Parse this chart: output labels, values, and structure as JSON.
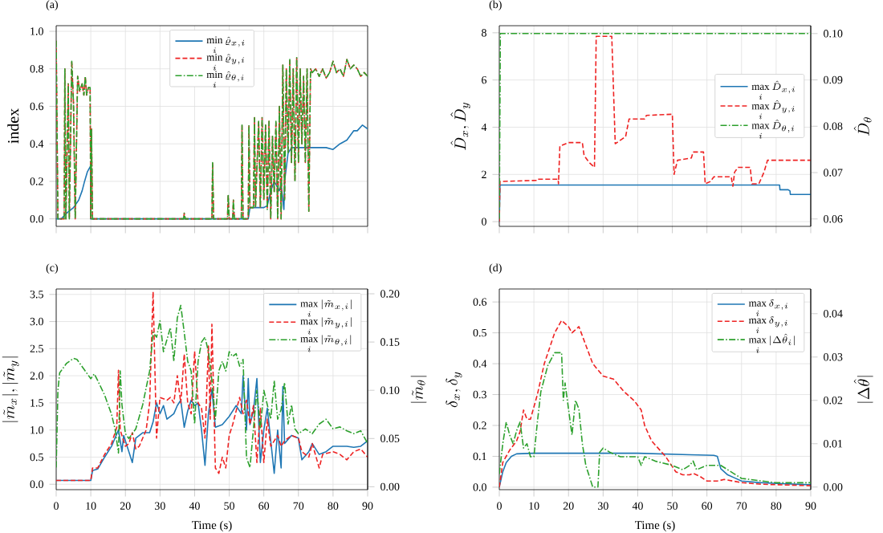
{
  "chart_data": [
    {
      "type": "line",
      "title": "(a)",
      "ylabel": "index",
      "xlim": [
        0,
        90
      ],
      "ylim": [
        -0.04,
        1.03
      ],
      "xticks": [
        0,
        10,
        20,
        30,
        40,
        50,
        60,
        70,
        80,
        90
      ],
      "yticks": [
        {
          "value": 0,
          "label": "0.0"
        },
        {
          "value": 0.2,
          "label": "0.2"
        },
        {
          "value": 0.4,
          "label": "0.4"
        },
        {
          "value": 0.6,
          "label": "0.6"
        },
        {
          "value": 0.8,
          "label": "0.8"
        },
        {
          "value": 1,
          "label": "1.0"
        }
      ],
      "tick_labels": "y",
      "grid": true,
      "legend": "top",
      "series": [
        {
          "name": "\\min\\limits_i \\hat{\\varrho}_{x,i}",
          "color": "#1f77b4",
          "line_style": "solid",
          "x": [
            0,
            1.5,
            3,
            5,
            6.5,
            7.5,
            8.2,
            9,
            9.9,
            10,
            55.5,
            56,
            60,
            61,
            62,
            63,
            64.5,
            65,
            65.8,
            66,
            67,
            68,
            72,
            78,
            80,
            82,
            84,
            86,
            87,
            88.5,
            90
          ],
          "values": [
            0,
            0,
            0.03,
            0.06,
            0.1,
            0.15,
            0.2,
            0.25,
            0.28,
            0,
            0,
            0.06,
            0.06,
            0.07,
            0.15,
            0.2,
            0.15,
            0.18,
            0.05,
            0.2,
            0.35,
            0.38,
            0.38,
            0.38,
            0.37,
            0.4,
            0.42,
            0.47,
            0.47,
            0.5,
            0.48
          ]
        },
        {
          "name": "\\min\\limits_i \\hat{\\varrho}_{y,i}",
          "color": "#ee2222",
          "line_style": "dashed",
          "x": [
            0,
            0.5,
            2.3,
            2.5,
            2.8,
            3.5,
            3.8,
            4.5,
            5,
            5.5,
            6.2,
            6.8,
            7.5,
            8,
            8.4,
            8.8,
            9.3,
            9.8,
            10,
            10.2,
            10.5,
            36.8,
            37,
            37.3,
            45,
            45.2,
            45.5,
            49.5,
            49.7,
            50,
            51,
            51.2,
            51.5,
            53.5,
            53.7,
            54,
            55.5,
            55.7,
            56,
            57,
            57.3,
            57.6,
            58.5,
            59,
            59.5,
            60,
            60.5,
            61,
            61.5,
            62,
            62.5,
            63,
            63.5,
            64,
            64.5,
            65,
            65.5,
            66,
            66.5,
            67,
            67.5,
            68,
            68.5,
            69,
            69.5,
            70,
            70.5,
            71,
            71.5,
            72,
            72.5,
            73,
            73.5,
            74,
            75,
            76,
            77,
            78,
            79,
            80,
            81,
            82,
            83,
            84,
            85,
            86,
            87,
            88,
            89,
            90
          ],
          "values": [
            0.95,
            0,
            0,
            0.8,
            0,
            0.72,
            0,
            0.84,
            0.62,
            0,
            0.76,
            0.68,
            0.72,
            0.66,
            0.76,
            0.66,
            0.7,
            0.7,
            0,
            0.48,
            0,
            0,
            0.03,
            0,
            0,
            0.3,
            0,
            0,
            0.13,
            0,
            0,
            0.1,
            0,
            0,
            0.5,
            0,
            0,
            0.5,
            0.06,
            0.06,
            0.54,
            0.06,
            0.52,
            0.06,
            0.54,
            0.1,
            0.5,
            0.05,
            0.52,
            0,
            0.44,
            0.14,
            0.52,
            0,
            0.6,
            0,
            0.82,
            0.1,
            0.8,
            0.35,
            0.85,
            0.3,
            0.8,
            0.2,
            0.86,
            0.3,
            0.8,
            0.4,
            0.76,
            0.3,
            0.8,
            0.04,
            0.8,
            0.78,
            0.8,
            0.76,
            0.8,
            0.75,
            0.78,
            0.84,
            0.78,
            0.8,
            0.76,
            0.85,
            0.8,
            0.82,
            0.8,
            0.76,
            0.78,
            0.76
          ]
        },
        {
          "name": "\\min\\limits_i \\hat{\\varrho}_{\\theta,i}",
          "color": "#2ca02c",
          "line_style": "dashdot",
          "x": [
            0,
            0.5,
            2.3,
            2.5,
            2.8,
            3.5,
            3.8,
            4.5,
            5,
            5.5,
            6.2,
            6.8,
            7.5,
            8,
            8.4,
            8.8,
            9.3,
            9.8,
            10,
            10.2,
            10.5,
            36.8,
            37,
            37.3,
            45,
            45.2,
            45.5,
            49.5,
            49.7,
            50,
            51,
            51.2,
            51.5,
            53.5,
            53.7,
            54,
            55.5,
            55.7,
            56,
            57,
            57.3,
            57.6,
            58.5,
            59,
            59.5,
            60,
            60.5,
            61,
            61.5,
            62,
            62.5,
            63,
            63.5,
            64,
            64.5,
            65,
            65.5,
            66,
            66.5,
            67,
            67.5,
            68,
            68.5,
            69,
            69.5,
            70,
            70.5,
            71,
            71.5,
            72,
            72.5,
            73,
            73.5,
            74,
            75,
            76,
            77,
            78,
            79,
            80,
            81,
            82,
            83,
            84,
            85,
            86,
            87,
            88,
            89,
            90
          ],
          "values": [
            0.95,
            0,
            0,
            0.8,
            0,
            0.72,
            0,
            0.84,
            0.62,
            0,
            0.76,
            0.68,
            0.72,
            0.66,
            0.76,
            0.66,
            0.7,
            0.7,
            0,
            0.48,
            0,
            0,
            0.03,
            0,
            0,
            0.3,
            0,
            0,
            0.13,
            0,
            0,
            0.1,
            0,
            0,
            0.5,
            0,
            0,
            0.5,
            0.06,
            0.06,
            0.54,
            0.06,
            0.52,
            0.06,
            0.54,
            0.1,
            0.5,
            0.05,
            0.52,
            0,
            0.44,
            0.14,
            0.52,
            0,
            0.6,
            0,
            0.82,
            0.1,
            0.8,
            0.35,
            0.85,
            0.3,
            0.8,
            0.2,
            0.86,
            0.3,
            0.8,
            0.4,
            0.76,
            0.3,
            0.8,
            0.04,
            0.8,
            0.78,
            0.8,
            0.76,
            0.8,
            0.75,
            0.78,
            0.84,
            0.78,
            0.8,
            0.76,
            0.85,
            0.8,
            0.82,
            0.8,
            0.76,
            0.78,
            0.76
          ]
        }
      ]
    },
    {
      "type": "line",
      "title": "(b)",
      "ylabel": "\\hat{D}_x, \\hat{D}_y",
      "y2label": "\\hat{D}_\\theta",
      "xlim": [
        0,
        90
      ],
      "ylim": [
        -0.2,
        8.3
      ],
      "y2lim": [
        0.0584,
        0.1017
      ],
      "xticks": [
        0,
        10,
        20,
        30,
        40,
        50,
        60,
        70,
        80,
        90
      ],
      "yticks": [
        0,
        2,
        4,
        6,
        8
      ],
      "y2ticks": [
        {
          "value": 0.06,
          "label": "0.06"
        },
        {
          "value": 0.07,
          "label": "0.07"
        },
        {
          "value": 0.08,
          "label": "0.08"
        },
        {
          "value": 0.09,
          "label": "0.09"
        },
        {
          "value": 0.1,
          "label": "0.10"
        }
      ],
      "tick_labels": "y",
      "grid": true,
      "legend": "right",
      "series": [
        {
          "name": "\\max\\limits_i \\hat{D}_{x,i}",
          "color": "#1f77b4",
          "line_style": "solid",
          "x": [
            0,
            0.2,
            81,
            81.1,
            83.5,
            84,
            84.1,
            90
          ],
          "values": [
            0,
            1.55,
            1.55,
            1.35,
            1.35,
            1.3,
            1.15,
            1.15
          ]
        },
        {
          "name": "\\max\\limits_i \\hat{D}_{y,i}",
          "color": "#ee2222",
          "line_style": "dashed",
          "x": [
            0,
            0.2,
            11,
            11.1,
            17,
            17.1,
            17.5,
            20,
            24,
            24.5,
            26,
            27.5,
            28,
            32.5,
            33.5,
            35.5,
            36.5,
            37.5,
            42,
            42.5,
            50,
            50.5,
            51.5,
            55.5,
            56,
            59,
            59.5,
            61,
            62,
            67,
            67.5,
            68,
            69,
            72.5,
            73,
            75,
            76.5,
            77.5,
            90
          ],
          "values": [
            0,
            1.7,
            1.75,
            1.8,
            1.8,
            1.6,
            3.2,
            3.35,
            3.35,
            2.8,
            2.5,
            2.3,
            7.85,
            7.85,
            3.3,
            3.5,
            3.6,
            4.35,
            4.35,
            4.5,
            4.55,
            2,
            2.6,
            2.7,
            2.95,
            2.95,
            1.6,
            1.7,
            1.9,
            1.9,
            1.5,
            2.1,
            2.3,
            2.3,
            1.6,
            1.6,
            2.1,
            2.6,
            2.6
          ]
        },
        {
          "name": "\\max\\limits_i \\hat{D}_{\\theta,i}",
          "color": "#2ca02c",
          "line_style": "dashdot",
          "axis": "y2",
          "x": [
            0,
            0.3,
            90
          ],
          "values": [
            0.06,
            0.1,
            0.1
          ]
        }
      ]
    },
    {
      "type": "line",
      "title": "(c)",
      "xlabel": "Time (s)",
      "ylabel": "|\\tilde{m}_x|, |\\tilde{m}_y|",
      "y2label": "|\\tilde{m}_\\theta|",
      "xlim": [
        0,
        90
      ],
      "ylim": [
        -0.1,
        3.6
      ],
      "y2lim": [
        -0.003,
        0.205
      ],
      "xticks": [
        0,
        10,
        20,
        30,
        40,
        50,
        60,
        70,
        80,
        90
      ],
      "yticks": [
        {
          "value": 0,
          "label": "0.0"
        },
        {
          "value": 0.5,
          "label": "0.5"
        },
        {
          "value": 1,
          "label": "1.0"
        },
        {
          "value": 1.5,
          "label": "1.5"
        },
        {
          "value": 2,
          "label": "2.0"
        },
        {
          "value": 2.5,
          "label": "2.5"
        },
        {
          "value": 3,
          "label": "3.0"
        },
        {
          "value": 3.5,
          "label": "3.5"
        }
      ],
      "y2ticks": [
        {
          "value": 0,
          "label": "0.00"
        },
        {
          "value": 0.05,
          "label": "0.05"
        },
        {
          "value": 0.1,
          "label": "0.10"
        },
        {
          "value": 0.15,
          "label": "0.15"
        },
        {
          "value": 0.2,
          "label": "0.20"
        }
      ],
      "grid": true,
      "legend": "top right",
      "series": [
        {
          "name": "\\max\\limits_i |\\tilde{m}_{x,i}|",
          "color": "#1f77b4",
          "line_style": "solid",
          "x": [
            0,
            10,
            10.5,
            12,
            14,
            16,
            17,
            18,
            19,
            19.5,
            21,
            22,
            23,
            25,
            27,
            28,
            29,
            30,
            31,
            32,
            34,
            35,
            36,
            37,
            38,
            39,
            40,
            41,
            42,
            43,
            44,
            45,
            46,
            48,
            50,
            52,
            53.5,
            54,
            55,
            55.5,
            56,
            57,
            58,
            59,
            60,
            61,
            62,
            63,
            64,
            65,
            65.5,
            66,
            68,
            70,
            71,
            73,
            74,
            76,
            78,
            80,
            84,
            86,
            88,
            90
          ],
          "values": [
            0.07,
            0.07,
            0.25,
            0.28,
            0.5,
            0.7,
            0.85,
            1,
            0.6,
            0.9,
            0.6,
            0.4,
            0.85,
            0.95,
            0.95,
            1.15,
            1.5,
            1.3,
            1.45,
            1.2,
            1.3,
            1.45,
            1.55,
            1.05,
            1.35,
            1.55,
            1.45,
            1.5,
            1,
            0.35,
            1.3,
            1.75,
            1.05,
            1.1,
            1.25,
            1.45,
            1.3,
            2,
            1,
            1.95,
            1.1,
            1.35,
            1.95,
            0.4,
            1,
            1.4,
            0.8,
            0.2,
            1,
            0.3,
            1.8,
            0.75,
            0.9,
            0.85,
            0.45,
            0.6,
            0.75,
            0.55,
            0.6,
            0.7,
            0.7,
            0.68,
            0.7,
            0.8
          ]
        },
        {
          "name": "\\max\\limits_i |\\tilde{m}_{y,i}|",
          "color": "#ee2222",
          "line_style": "dashed",
          "x": [
            0,
            10,
            10.5,
            12,
            14,
            16,
            17.5,
            18,
            18.5,
            20,
            21,
            22,
            23,
            24,
            26,
            27,
            28,
            29,
            30,
            32,
            33,
            34,
            35,
            36,
            37,
            38,
            39,
            40,
            41,
            42,
            43,
            44,
            44.5,
            45,
            46,
            47,
            48,
            49,
            50,
            51,
            53,
            54,
            55,
            56,
            57,
            58,
            59,
            60,
            61,
            62,
            64,
            65,
            66,
            68,
            70,
            71,
            73,
            74,
            76,
            77,
            80,
            82,
            84,
            86,
            88,
            90
          ],
          "values": [
            0.07,
            0.07,
            0.3,
            0.3,
            0.55,
            0.75,
            1.05,
            2.1,
            1,
            0.7,
            0.75,
            0.95,
            0.65,
            0.7,
            1,
            1.5,
            3.55,
            0.85,
            1.6,
            1.55,
            1.6,
            1.5,
            2,
            1.5,
            2.4,
            1.5,
            1.3,
            2.45,
            1.5,
            1.4,
            0.85,
            2.55,
            1.2,
            2.95,
            0.3,
            0.2,
            0.5,
            0.3,
            0.9,
            1.1,
            1.6,
            1.3,
            1.55,
            1.1,
            1.45,
            0.4,
            1.4,
            0.4,
            1.2,
            0.7,
            0.9,
            0.7,
            0.8,
            0.9,
            0.85,
            0.6,
            0.5,
            0.75,
            0.3,
            0.55,
            0.6,
            0.55,
            0.45,
            0.6,
            0.65,
            0.5
          ]
        },
        {
          "name": "\\max\\limits_i |\\tilde{m}_{\\theta,i}|",
          "color": "#2ca02c",
          "line_style": "dashdot",
          "axis": "y2",
          "x": [
            0,
            0.5,
            1,
            3,
            5,
            6,
            8,
            10,
            11,
            12,
            14,
            16,
            17,
            18,
            18.5,
            19,
            20,
            21,
            23,
            25,
            27,
            28,
            29,
            30,
            31,
            33,
            34,
            35,
            36,
            37,
            38,
            39,
            40,
            41,
            42,
            43,
            44,
            45,
            46,
            47,
            48,
            49,
            50,
            51,
            52,
            53,
            54,
            55,
            56,
            57,
            58,
            59,
            60,
            61,
            62,
            63,
            64,
            65,
            66,
            67,
            68,
            69,
            70,
            72,
            74,
            76,
            78,
            80,
            82,
            84,
            86,
            88,
            90
          ],
          "values": [
            0.02,
            0.1,
            0.118,
            0.128,
            0.133,
            0.132,
            0.122,
            0.112,
            0.117,
            0.11,
            0.095,
            0.075,
            0.06,
            0.035,
            0.12,
            0.085,
            0.055,
            0.05,
            0.06,
            0.085,
            0.12,
            0.16,
            0.155,
            0.172,
            0.14,
            0.165,
            0.13,
            0.175,
            0.188,
            0.16,
            0.13,
            0.12,
            0.065,
            0.13,
            0.15,
            0.155,
            0.14,
            0.11,
            0.07,
            0.12,
            0.13,
            0.12,
            0.14,
            0.135,
            0.138,
            0.125,
            0.132,
            0.03,
            0.02,
            0.06,
            0.1,
            0.06,
            0.1,
            0.085,
            0.07,
            0.11,
            0.07,
            0.08,
            0.108,
            0.065,
            0.085,
            0.06,
            0.055,
            0.06,
            0.055,
            0.065,
            0.07,
            0.06,
            0.062,
            0.058,
            0.055,
            0.058,
            0.045
          ]
        }
      ]
    },
    {
      "type": "line",
      "title": "(d)",
      "xlabel": "Time (s)",
      "ylabel": "\\delta_x, \\delta_y",
      "y2label": "|\\Delta\\hat{\\theta}|",
      "xlim": [
        0,
        90
      ],
      "ylim": [
        -0.008,
        0.642
      ],
      "y2lim": [
        -0.0006,
        0.0457
      ],
      "xticks": [
        0,
        10,
        20,
        30,
        40,
        50,
        60,
        70,
        80,
        90
      ],
      "yticks": [
        {
          "value": 0,
          "label": "0.0"
        },
        {
          "value": 0.1,
          "label": "0.1"
        },
        {
          "value": 0.2,
          "label": "0.2"
        },
        {
          "value": 0.3,
          "label": "0.3"
        },
        {
          "value": 0.4,
          "label": "0.4"
        },
        {
          "value": 0.5,
          "label": "0.5"
        },
        {
          "value": 0.6,
          "label": "0.6"
        }
      ],
      "y2ticks": [
        {
          "value": 0,
          "label": "0.00"
        },
        {
          "value": 0.01,
          "label": "0.01"
        },
        {
          "value": 0.02,
          "label": "0.02"
        },
        {
          "value": 0.03,
          "label": "0.03"
        },
        {
          "value": 0.04,
          "label": "0.04"
        }
      ],
      "grid": true,
      "legend": "top right",
      "series": [
        {
          "name": "\\max\\limits_i \\delta_{x,i}",
          "color": "#1f77b4",
          "line_style": "solid",
          "x": [
            0,
            1,
            2,
            3.5,
            5,
            10,
            40,
            55,
            62,
            63,
            64,
            66,
            68,
            70,
            75,
            80,
            90
          ],
          "values": [
            0,
            0.05,
            0.08,
            0.1,
            0.108,
            0.11,
            0.11,
            0.105,
            0.103,
            0.1,
            0.06,
            0.04,
            0.03,
            0.02,
            0.015,
            0.012,
            0.008
          ]
        },
        {
          "name": "\\max\\limits_i \\delta_{y,i}",
          "color": "#ee2222",
          "line_style": "dashed",
          "x": [
            0,
            1,
            3,
            5,
            6,
            7,
            8,
            9,
            11,
            13,
            16,
            18,
            20,
            21,
            23,
            25,
            27,
            30,
            33,
            36,
            39,
            41,
            42,
            44,
            48,
            51,
            53,
            55,
            56,
            58,
            60,
            63,
            65,
            70,
            75,
            80,
            90
          ],
          "values": [
            0,
            0.08,
            0.12,
            0.15,
            0.18,
            0.25,
            0.22,
            0.22,
            0.3,
            0.4,
            0.5,
            0.54,
            0.52,
            0.5,
            0.52,
            0.46,
            0.4,
            0.36,
            0.35,
            0.31,
            0.28,
            0.25,
            0.2,
            0.15,
            0.1,
            0.05,
            0.04,
            0.04,
            0.045,
            0.035,
            0.02,
            0.02,
            0.025,
            0.015,
            0.01,
            0.008,
            0.005
          ]
        },
        {
          "name": "\\max\\limits_i |\\Delta\\hat{\\theta}_i|",
          "color": "#2ca02c",
          "line_style": "dashdot",
          "axis": "y2",
          "x": [
            0,
            1,
            2,
            3,
            4,
            5,
            6,
            7,
            8,
            9,
            10,
            11,
            12,
            14,
            16,
            18,
            18.5,
            19,
            20,
            21,
            22,
            23,
            24,
            25,
            27,
            28.5,
            29,
            30,
            32,
            35,
            40,
            41,
            42,
            45,
            50,
            53,
            55,
            56,
            57,
            60,
            64,
            66,
            68,
            70,
            75,
            80,
            85,
            90
          ],
          "values": [
            0.003,
            0.01,
            0.015,
            0.012,
            0.01,
            0.013,
            0.015,
            0.009,
            0.01,
            0.007,
            0.007,
            0.015,
            0.022,
            0.028,
            0.031,
            0.031,
            0.02,
            0.024,
            0.018,
            0.012,
            0.02,
            0.018,
            0.01,
            0.005,
            0,
            0,
            0.008,
            0.009,
            0.008,
            0.007,
            0.007,
            0.005,
            0.007,
            0.006,
            0.005,
            0.004,
            0.005,
            0.006,
            0.004,
            0.005,
            0.005,
            0.004,
            0.003,
            0.002,
            0.0015,
            0.001,
            0.001,
            0.001
          ]
        }
      ]
    }
  ]
}
